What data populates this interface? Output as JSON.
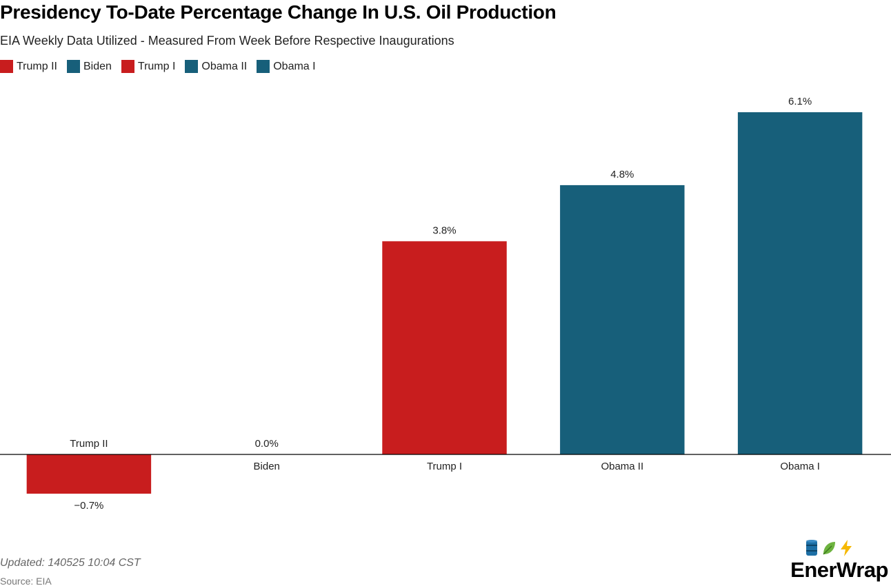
{
  "colors": {
    "trump": "#c81d1e",
    "dem": "#175f7a",
    "axis": "#000000"
  },
  "footer": {
    "updated": "Updated: 140525 10:04 CST",
    "source": "Source: EIA"
  },
  "logo": {
    "text": "EnerWrap",
    "icons": [
      "oil-barrel-icon",
      "leaf-icon",
      "lightning-icon"
    ]
  },
  "chart_data": {
    "type": "bar",
    "title": "Presidency To-Date Percentage Change In U.S. Oil Production",
    "subtitle": "EIA Weekly Data Utilized - Measured From Week Before Respective Inaugurations",
    "categories": [
      "Trump II",
      "Biden",
      "Trump I",
      "Obama II",
      "Obama I"
    ],
    "values": [
      -0.7,
      0.0,
      3.8,
      4.8,
      6.1
    ],
    "value_labels": [
      "−0.7%",
      "0.0%",
      "3.8%",
      "4.8%",
      "6.1%"
    ],
    "bar_colors": [
      "#c81d1e",
      "#175f7a",
      "#c81d1e",
      "#175f7a",
      "#175f7a"
    ],
    "legend": [
      {
        "name": "Trump II",
        "color": "#c81d1e"
      },
      {
        "name": "Biden",
        "color": "#175f7a"
      },
      {
        "name": "Trump I",
        "color": "#c81d1e"
      },
      {
        "name": "Obama II",
        "color": "#175f7a"
      },
      {
        "name": "Obama I",
        "color": "#175f7a"
      }
    ],
    "legend_position": "top-left",
    "ylim": [
      -0.7,
      6.1
    ],
    "grid": false,
    "xlabel": "",
    "ylabel": ""
  }
}
